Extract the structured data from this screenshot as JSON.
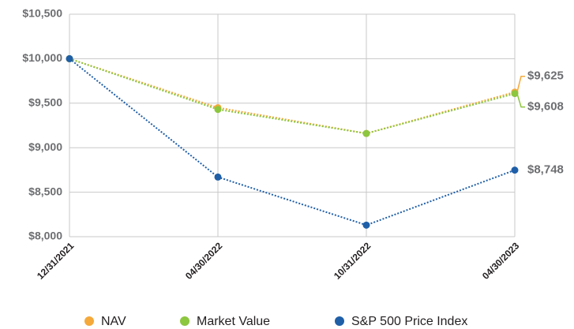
{
  "chart_data": {
    "type": "line",
    "categories": [
      "12/31/2021",
      "04/30/2022",
      "10/31/2022",
      "04/30/2023"
    ],
    "series": [
      {
        "name": "NAV",
        "color": "#f5a93a",
        "values": [
          10000,
          9450,
          9160,
          9625
        ],
        "value_labels": [
          null,
          null,
          null,
          "$9,625"
        ]
      },
      {
        "name": "Market Value",
        "color": "#8dc63f",
        "values": [
          10000,
          9430,
          9160,
          9608
        ],
        "value_labels": [
          null,
          null,
          null,
          "$9,608"
        ]
      },
      {
        "name": "S&P 500 Price Index",
        "color": "#1f5fa8",
        "values": [
          10000,
          8670,
          8130,
          8748
        ],
        "value_labels": [
          null,
          null,
          null,
          "$8,748"
        ]
      }
    ],
    "ylim": [
      8000,
      10500
    ],
    "yticks": [
      {
        "value": 8000,
        "label": "$8,000"
      },
      {
        "value": 8500,
        "label": "$8,500"
      },
      {
        "value": 9000,
        "label": "$9,000"
      },
      {
        "value": 9500,
        "label": "$9,500"
      },
      {
        "value": 10000,
        "label": "$10,000"
      },
      {
        "value": 10500,
        "label": "$10,500"
      }
    ],
    "grid": true,
    "legend": "bottom"
  }
}
